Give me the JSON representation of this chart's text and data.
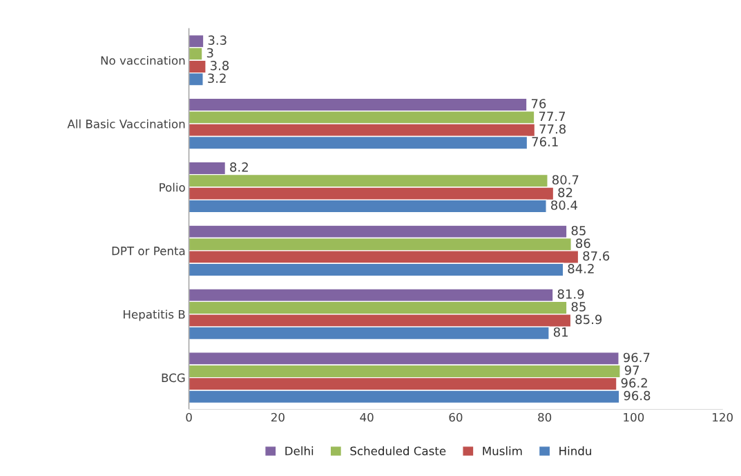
{
  "chart_data": {
    "type": "bar",
    "orientation": "horizontal",
    "categories": [
      "No vaccination",
      "All Basic Vaccination",
      "Polio",
      "DPT or Penta",
      "Hepatitis B",
      "BCG"
    ],
    "series": [
      {
        "name": "Delhi",
        "color": "#8064a2",
        "values": [
          3.3,
          76,
          8.2,
          85,
          81.9,
          96.7
        ]
      },
      {
        "name": "Scheduled Caste",
        "color": "#9bbb59",
        "values": [
          3,
          77.7,
          80.7,
          86,
          85,
          97
        ]
      },
      {
        "name": "Muslim",
        "color": "#c0504d",
        "values": [
          3.8,
          77.8,
          82,
          87.6,
          85.9,
          96.2
        ]
      },
      {
        "name": "Hindu",
        "color": "#4f81bd",
        "values": [
          3.2,
          76.1,
          80.4,
          84.2,
          81,
          96.8
        ]
      }
    ],
    "xlim": [
      0,
      120
    ],
    "xticks": [
      0,
      20,
      40,
      60,
      80,
      100,
      120
    ],
    "data_labels": true,
    "legend": "bottom",
    "grid": false
  }
}
